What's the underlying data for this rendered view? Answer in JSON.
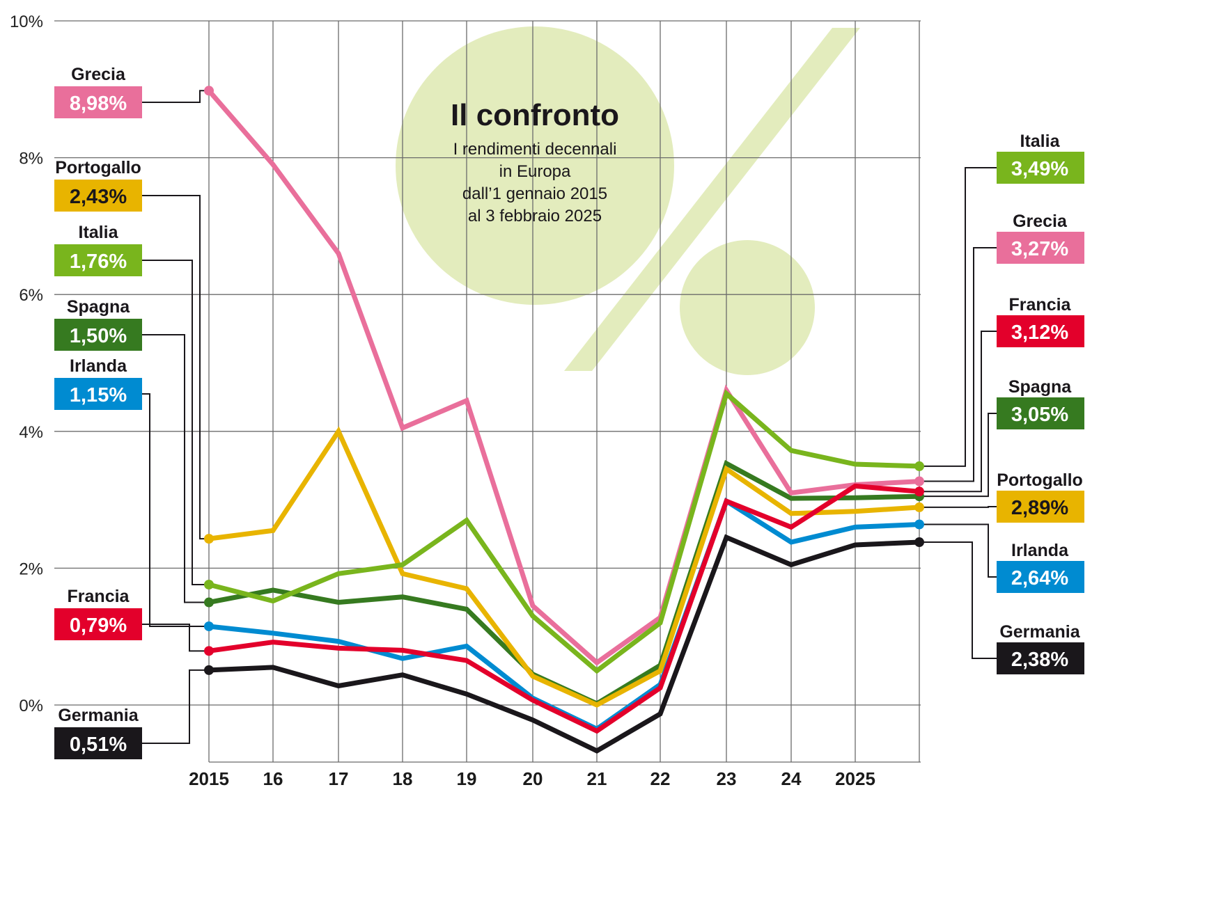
{
  "chart_data": {
    "type": "line",
    "title": "Il confronto",
    "subtitle": [
      "I rendimenti decennali",
      "in Europa",
      "dall’1 gennaio 2015",
      "al 3 febbraio 2025"
    ],
    "xlabel": "",
    "ylabel": "",
    "x": [
      "2015",
      "16",
      "17",
      "18",
      "19",
      "20",
      "21",
      "22",
      "23",
      "24",
      "2025",
      "3 feb 2025"
    ],
    "x_tick_labels": [
      "2015",
      "16",
      "17",
      "18",
      "19",
      "20",
      "21",
      "22",
      "23",
      "24",
      "2025"
    ],
    "ylim": [
      -0.85,
      10
    ],
    "y_ticks": [
      0,
      2,
      4,
      6,
      8,
      10
    ],
    "y_tick_labels": [
      "0%",
      "2%",
      "4%",
      "6%",
      "8%",
      "10%"
    ],
    "grid": true,
    "series": [
      {
        "name": "Grecia",
        "color": "#e96f9b",
        "start_label": "8,98%",
        "end_label": "3,27%",
        "values": [
          8.98,
          7.9,
          6.6,
          4.05,
          4.45,
          1.45,
          0.62,
          1.28,
          4.6,
          3.1,
          3.22,
          3.27
        ]
      },
      {
        "name": "Portogallo",
        "color": "#e8b400",
        "start_label": "2,43%",
        "end_label": "2,89%",
        "values": [
          2.43,
          2.55,
          4.0,
          1.92,
          1.7,
          0.42,
          0.0,
          0.5,
          3.45,
          2.8,
          2.83,
          2.89
        ]
      },
      {
        "name": "Italia",
        "color": "#79b51d",
        "start_label": "1,76%",
        "end_label": "3,49%",
        "values": [
          1.76,
          1.52,
          1.92,
          2.05,
          2.7,
          1.3,
          0.5,
          1.2,
          4.55,
          3.72,
          3.52,
          3.49
        ]
      },
      {
        "name": "Spagna",
        "color": "#367a20",
        "start_label": "1,50%",
        "end_label": "3,05%",
        "values": [
          1.5,
          1.68,
          1.5,
          1.58,
          1.4,
          0.45,
          0.02,
          0.58,
          3.53,
          3.02,
          3.03,
          3.05
        ]
      },
      {
        "name": "Irlanda",
        "color": "#008bd1",
        "start_label": "1,15%",
        "end_label": "2,64%",
        "values": [
          1.15,
          1.05,
          0.93,
          0.68,
          0.86,
          0.1,
          -0.35,
          0.3,
          2.98,
          2.38,
          2.6,
          2.64
        ]
      },
      {
        "name": "Francia",
        "color": "#e3002b",
        "start_label": "0,79%",
        "end_label": "3,12%",
        "values": [
          0.79,
          0.92,
          0.83,
          0.8,
          0.65,
          0.07,
          -0.38,
          0.25,
          2.98,
          2.6,
          3.2,
          3.12
        ]
      },
      {
        "name": "Germania",
        "color": "#1a171b",
        "start_label": "0,51%",
        "end_label": "2,38%",
        "values": [
          0.51,
          0.55,
          0.28,
          0.44,
          0.16,
          -0.22,
          -0.67,
          -0.13,
          2.45,
          2.05,
          2.34,
          2.38
        ]
      }
    ],
    "left_label_order": [
      "Grecia",
      "Portogallo",
      "Italia",
      "Spagna",
      "Irlanda",
      "Francia",
      "Germania"
    ],
    "right_label_order": [
      "Italia",
      "Grecia",
      "Francia",
      "Spagna",
      "Portogallo",
      "Irlanda",
      "Germania"
    ],
    "badge_text_colors": {
      "Portogallo": "#1a171b"
    },
    "decoration_color": "#e3ecbd"
  }
}
